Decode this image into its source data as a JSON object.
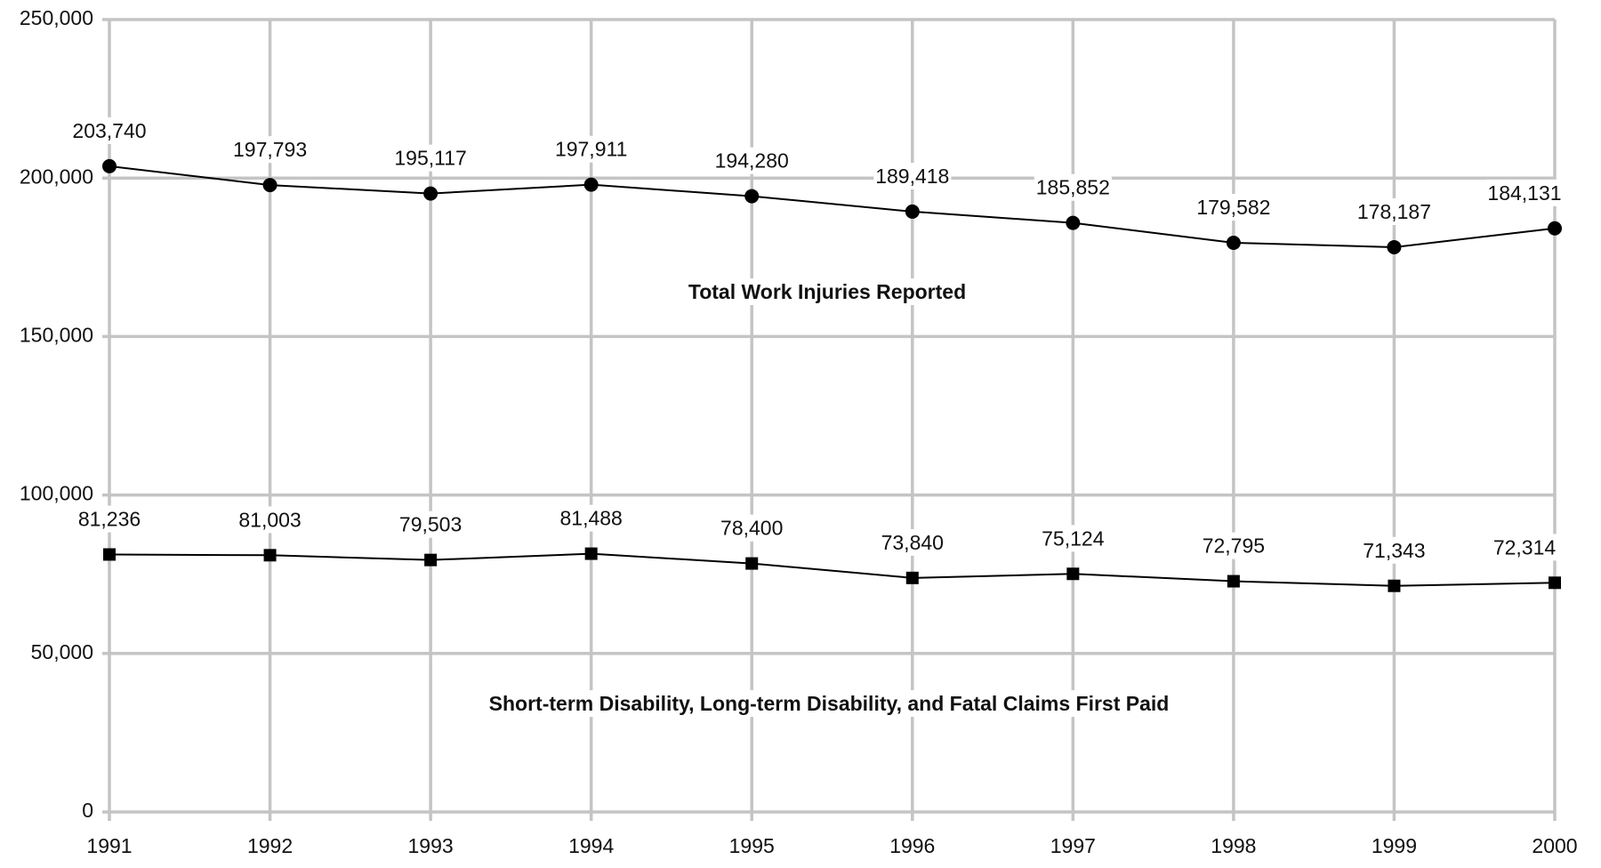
{
  "chart_data": {
    "type": "line",
    "categories": [
      "1991",
      "1992",
      "1993",
      "1994",
      "1995",
      "1996",
      "1997",
      "1998",
      "1999",
      "2000"
    ],
    "series": [
      {
        "name": "Total Work Injuries Reported",
        "color": "#000000",
        "marker": "circle",
        "values": [
          203740,
          197793,
          195117,
          197911,
          194280,
          189418,
          185852,
          179582,
          178187,
          184131
        ],
        "value_labels": [
          "203,740",
          "197,793",
          "195,117",
          "197,911",
          "194,280",
          "189,418",
          "185,852",
          "179,582",
          "178,187",
          "184,131"
        ]
      },
      {
        "name": "Short-term Disability, Long-term Disability, and Fatal Claims First Paid",
        "color": "#000000",
        "marker": "square",
        "values": [
          81236,
          81003,
          79503,
          81488,
          78400,
          73840,
          75124,
          72795,
          71343,
          72314
        ],
        "value_labels": [
          "81,236",
          "81,003",
          "79,503",
          "81,488",
          "78,400",
          "73,840",
          "75,124",
          "72,795",
          "71,343",
          "72,314"
        ]
      }
    ],
    "ylim": [
      0,
      250000
    ],
    "yticks": [
      {
        "value": 0,
        "label": "0"
      },
      {
        "value": 50000,
        "label": "50,000"
      },
      {
        "value": 100000,
        "label": "100,000"
      },
      {
        "value": 150000,
        "label": "150,000"
      },
      {
        "value": 200000,
        "label": "200,000"
      },
      {
        "value": 250000,
        "label": "250,000"
      }
    ],
    "grid": true
  }
}
